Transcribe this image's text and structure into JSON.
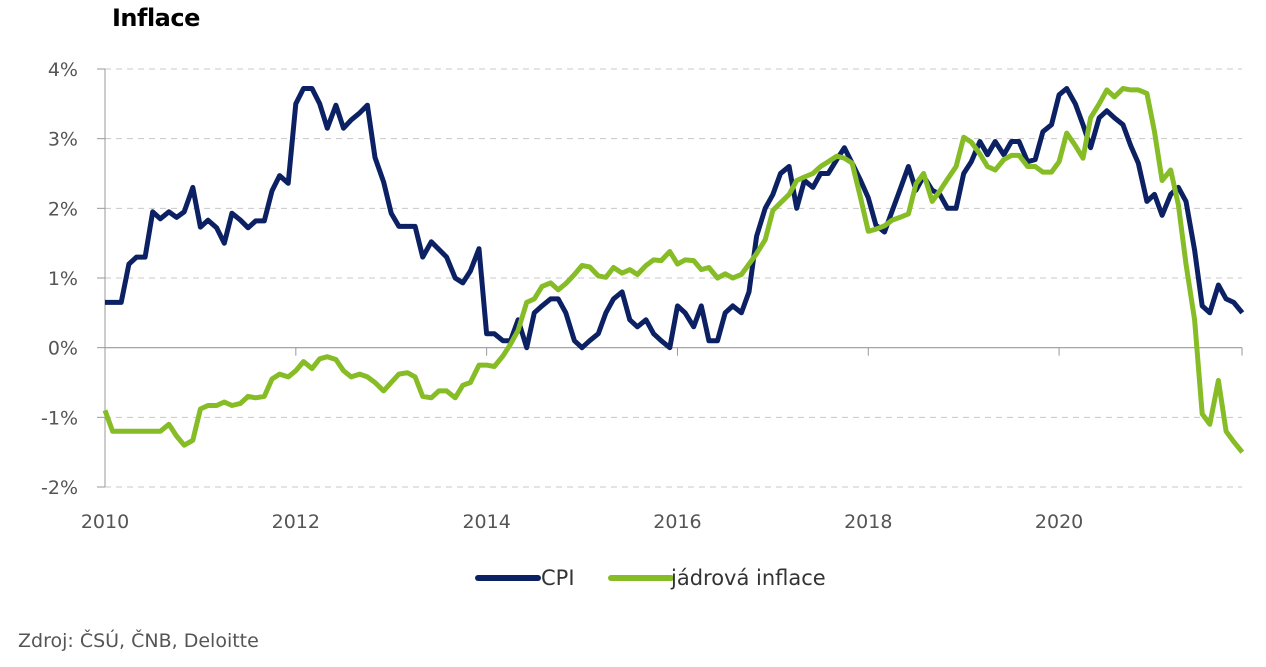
{
  "title": "Inflace",
  "source": "Zdroj: ČSÚ, ČNB, Deloitte",
  "colors": {
    "cpi": "#0c2163",
    "core": "#86bc25",
    "grid": "#c8c8c8",
    "axis": "#999999"
  },
  "chart_data": {
    "type": "line",
    "title": "Inflace",
    "xlabel": "",
    "ylabel": "",
    "xlim": [
      2010,
      2021.917
    ],
    "ylim": [
      -2,
      4
    ],
    "x_ticks": [
      2010,
      2012,
      2014,
      2016,
      2018,
      2020
    ],
    "x_tick_labels": [
      "2010",
      "2012",
      "2014",
      "2016",
      "2018",
      "2020"
    ],
    "y_ticks": [
      -2,
      -1,
      0,
      1,
      2,
      3,
      4
    ],
    "y_tick_labels": [
      "-2%",
      "-1%",
      "0%",
      "1%",
      "2%",
      "3%",
      "4%"
    ],
    "grid": "horizontal dashed",
    "legend": "bottom-center",
    "series": [
      {
        "name": "CPI",
        "color": "#0c2163",
        "points": [
          [
            2010.0,
            0.65
          ],
          [
            2010.17,
            0.65
          ],
          [
            2010.25,
            1.2
          ],
          [
            2010.33,
            1.3
          ],
          [
            2010.42,
            1.3
          ],
          [
            2010.5,
            1.95
          ],
          [
            2010.58,
            1.85
          ],
          [
            2010.67,
            1.95
          ],
          [
            2010.75,
            1.87
          ],
          [
            2010.83,
            1.95
          ],
          [
            2010.92,
            2.3
          ],
          [
            2011.0,
            1.73
          ],
          [
            2011.08,
            1.83
          ],
          [
            2011.17,
            1.72
          ],
          [
            2011.25,
            1.5
          ],
          [
            2011.33,
            1.93
          ],
          [
            2011.42,
            1.83
          ],
          [
            2011.5,
            1.72
          ],
          [
            2011.58,
            1.82
          ],
          [
            2011.67,
            1.82
          ],
          [
            2011.75,
            2.25
          ],
          [
            2011.83,
            2.47
          ],
          [
            2011.92,
            2.36
          ],
          [
            2012.0,
            3.5
          ],
          [
            2012.08,
            3.72
          ],
          [
            2012.17,
            3.72
          ],
          [
            2012.25,
            3.5
          ],
          [
            2012.33,
            3.15
          ],
          [
            2012.42,
            3.48
          ],
          [
            2012.5,
            3.15
          ],
          [
            2012.58,
            3.27
          ],
          [
            2012.67,
            3.37
          ],
          [
            2012.75,
            3.48
          ],
          [
            2012.83,
            2.73
          ],
          [
            2012.92,
            2.38
          ],
          [
            2013.0,
            1.93
          ],
          [
            2013.08,
            1.74
          ],
          [
            2013.17,
            1.74
          ],
          [
            2013.25,
            1.74
          ],
          [
            2013.33,
            1.3
          ],
          [
            2013.42,
            1.52
          ],
          [
            2013.5,
            1.41
          ],
          [
            2013.58,
            1.3
          ],
          [
            2013.67,
            1.0
          ],
          [
            2013.75,
            0.93
          ],
          [
            2013.83,
            1.1
          ],
          [
            2013.92,
            1.42
          ],
          [
            2014.0,
            0.2
          ],
          [
            2014.08,
            0.2
          ],
          [
            2014.17,
            0.1
          ],
          [
            2014.25,
            0.1
          ],
          [
            2014.33,
            0.4
          ],
          [
            2014.42,
            0.0
          ],
          [
            2014.5,
            0.5
          ],
          [
            2014.58,
            0.6
          ],
          [
            2014.67,
            0.7
          ],
          [
            2014.75,
            0.7
          ],
          [
            2014.83,
            0.5
          ],
          [
            2014.92,
            0.1
          ],
          [
            2015.0,
            0.0
          ],
          [
            2015.08,
            0.1
          ],
          [
            2015.17,
            0.2
          ],
          [
            2015.25,
            0.5
          ],
          [
            2015.33,
            0.7
          ],
          [
            2015.42,
            0.8
          ],
          [
            2015.5,
            0.4
          ],
          [
            2015.58,
            0.3
          ],
          [
            2015.67,
            0.4
          ],
          [
            2015.75,
            0.2
          ],
          [
            2015.83,
            0.1
          ],
          [
            2015.92,
            0.0
          ],
          [
            2016.0,
            0.6
          ],
          [
            2016.08,
            0.5
          ],
          [
            2016.17,
            0.3
          ],
          [
            2016.25,
            0.6
          ],
          [
            2016.33,
            0.1
          ],
          [
            2016.42,
            0.1
          ],
          [
            2016.5,
            0.5
          ],
          [
            2016.58,
            0.6
          ],
          [
            2016.67,
            0.5
          ],
          [
            2016.75,
            0.8
          ],
          [
            2016.83,
            1.6
          ],
          [
            2016.92,
            2.0
          ],
          [
            2017.0,
            2.2
          ],
          [
            2017.08,
            2.5
          ],
          [
            2017.17,
            2.6
          ],
          [
            2017.25,
            2.0
          ],
          [
            2017.33,
            2.4
          ],
          [
            2017.42,
            2.3
          ],
          [
            2017.5,
            2.5
          ],
          [
            2017.58,
            2.5
          ],
          [
            2017.67,
            2.7
          ],
          [
            2017.75,
            2.87
          ],
          [
            2017.83,
            2.65
          ],
          [
            2017.92,
            2.4
          ],
          [
            2018.0,
            2.15
          ],
          [
            2018.08,
            1.76
          ],
          [
            2018.17,
            1.66
          ],
          [
            2018.25,
            1.96
          ],
          [
            2018.33,
            2.26
          ],
          [
            2018.42,
            2.6
          ],
          [
            2018.5,
            2.26
          ],
          [
            2018.58,
            2.46
          ],
          [
            2018.67,
            2.26
          ],
          [
            2018.75,
            2.2
          ],
          [
            2018.83,
            2.0
          ],
          [
            2018.92,
            2.0
          ],
          [
            2019.0,
            2.5
          ],
          [
            2019.08,
            2.67
          ],
          [
            2019.17,
            2.96
          ],
          [
            2019.25,
            2.77
          ],
          [
            2019.33,
            2.96
          ],
          [
            2019.42,
            2.77
          ],
          [
            2019.5,
            2.96
          ],
          [
            2019.58,
            2.96
          ],
          [
            2019.67,
            2.67
          ],
          [
            2019.75,
            2.7
          ],
          [
            2019.83,
            3.1
          ],
          [
            2019.92,
            3.2
          ],
          [
            2020.0,
            3.63
          ],
          [
            2020.08,
            3.72
          ],
          [
            2020.17,
            3.5
          ],
          [
            2020.25,
            3.2
          ],
          [
            2020.33,
            2.87
          ],
          [
            2020.42,
            3.3
          ],
          [
            2020.5,
            3.4
          ],
          [
            2020.58,
            3.3
          ],
          [
            2020.67,
            3.2
          ],
          [
            2020.75,
            2.9
          ],
          [
            2020.83,
            2.65
          ],
          [
            2020.92,
            2.1
          ],
          [
            2021.0,
            2.2
          ],
          [
            2021.08,
            1.9
          ],
          [
            2021.17,
            2.2
          ],
          [
            2021.25,
            2.3
          ],
          [
            2021.33,
            2.1
          ],
          [
            2021.42,
            1.4
          ],
          [
            2021.5,
            0.6
          ],
          [
            2021.58,
            0.5
          ],
          [
            2021.67,
            0.9
          ],
          [
            2021.75,
            0.7
          ],
          [
            2021.83,
            0.65
          ],
          [
            2021.92,
            0.5
          ]
        ]
      },
      {
        "name": "jádrová inflace",
        "color": "#86bc25",
        "points": [
          [
            2010.0,
            -0.9
          ],
          [
            2010.08,
            -1.2
          ],
          [
            2010.17,
            -1.2
          ],
          [
            2010.25,
            -1.2
          ],
          [
            2010.33,
            -1.2
          ],
          [
            2010.42,
            -1.2
          ],
          [
            2010.5,
            -1.2
          ],
          [
            2010.58,
            -1.2
          ],
          [
            2010.67,
            -1.1
          ],
          [
            2010.75,
            -1.27
          ],
          [
            2010.83,
            -1.4
          ],
          [
            2010.92,
            -1.33
          ],
          [
            2011.0,
            -0.88
          ],
          [
            2011.08,
            -0.83
          ],
          [
            2011.17,
            -0.83
          ],
          [
            2011.25,
            -0.78
          ],
          [
            2011.33,
            -0.83
          ],
          [
            2011.42,
            -0.8
          ],
          [
            2011.5,
            -0.7
          ],
          [
            2011.58,
            -0.72
          ],
          [
            2011.67,
            -0.7
          ],
          [
            2011.75,
            -0.45
          ],
          [
            2011.83,
            -0.38
          ],
          [
            2011.92,
            -0.42
          ],
          [
            2012.0,
            -0.33
          ],
          [
            2012.08,
            -0.2
          ],
          [
            2012.17,
            -0.3
          ],
          [
            2012.25,
            -0.16
          ],
          [
            2012.33,
            -0.13
          ],
          [
            2012.42,
            -0.17
          ],
          [
            2012.5,
            -0.33
          ],
          [
            2012.58,
            -0.42
          ],
          [
            2012.67,
            -0.38
          ],
          [
            2012.75,
            -0.42
          ],
          [
            2012.83,
            -0.5
          ],
          [
            2012.92,
            -0.62
          ],
          [
            2013.0,
            -0.5
          ],
          [
            2013.08,
            -0.38
          ],
          [
            2013.17,
            -0.36
          ],
          [
            2013.25,
            -0.42
          ],
          [
            2013.33,
            -0.7
          ],
          [
            2013.42,
            -0.72
          ],
          [
            2013.5,
            -0.62
          ],
          [
            2013.58,
            -0.62
          ],
          [
            2013.67,
            -0.72
          ],
          [
            2013.75,
            -0.54
          ],
          [
            2013.83,
            -0.5
          ],
          [
            2013.92,
            -0.25
          ],
          [
            2014.0,
            -0.25
          ],
          [
            2014.08,
            -0.27
          ],
          [
            2014.17,
            -0.12
          ],
          [
            2014.25,
            0.05
          ],
          [
            2014.33,
            0.25
          ],
          [
            2014.42,
            0.65
          ],
          [
            2014.5,
            0.7
          ],
          [
            2014.58,
            0.88
          ],
          [
            2014.67,
            0.93
          ],
          [
            2014.75,
            0.83
          ],
          [
            2014.83,
            0.92
          ],
          [
            2014.92,
            1.05
          ],
          [
            2015.0,
            1.18
          ],
          [
            2015.08,
            1.16
          ],
          [
            2015.17,
            1.03
          ],
          [
            2015.25,
            1.01
          ],
          [
            2015.33,
            1.15
          ],
          [
            2015.42,
            1.07
          ],
          [
            2015.5,
            1.12
          ],
          [
            2015.58,
            1.05
          ],
          [
            2015.67,
            1.18
          ],
          [
            2015.75,
            1.26
          ],
          [
            2015.83,
            1.25
          ],
          [
            2015.92,
            1.38
          ],
          [
            2016.0,
            1.2
          ],
          [
            2016.08,
            1.26
          ],
          [
            2016.17,
            1.25
          ],
          [
            2016.25,
            1.12
          ],
          [
            2016.33,
            1.15
          ],
          [
            2016.42,
            1.0
          ],
          [
            2016.5,
            1.06
          ],
          [
            2016.58,
            1.0
          ],
          [
            2016.67,
            1.05
          ],
          [
            2016.75,
            1.2
          ],
          [
            2016.83,
            1.35
          ],
          [
            2016.92,
            1.55
          ],
          [
            2017.0,
            1.97
          ],
          [
            2017.08,
            2.08
          ],
          [
            2017.17,
            2.2
          ],
          [
            2017.25,
            2.4
          ],
          [
            2017.33,
            2.45
          ],
          [
            2017.42,
            2.5
          ],
          [
            2017.5,
            2.6
          ],
          [
            2017.58,
            2.67
          ],
          [
            2017.67,
            2.75
          ],
          [
            2017.75,
            2.72
          ],
          [
            2017.83,
            2.65
          ],
          [
            2017.92,
            2.15
          ],
          [
            2018.0,
            1.67
          ],
          [
            2018.08,
            1.7
          ],
          [
            2018.17,
            1.75
          ],
          [
            2018.25,
            1.83
          ],
          [
            2018.33,
            1.87
          ],
          [
            2018.42,
            1.92
          ],
          [
            2018.5,
            2.35
          ],
          [
            2018.58,
            2.5
          ],
          [
            2018.67,
            2.1
          ],
          [
            2018.75,
            2.25
          ],
          [
            2018.83,
            2.42
          ],
          [
            2018.92,
            2.6
          ],
          [
            2019.0,
            3.02
          ],
          [
            2019.08,
            2.95
          ],
          [
            2019.17,
            2.78
          ],
          [
            2019.25,
            2.6
          ],
          [
            2019.33,
            2.55
          ],
          [
            2019.42,
            2.7
          ],
          [
            2019.5,
            2.76
          ],
          [
            2019.58,
            2.76
          ],
          [
            2019.67,
            2.6
          ],
          [
            2019.75,
            2.6
          ],
          [
            2019.83,
            2.52
          ],
          [
            2019.92,
            2.52
          ],
          [
            2020.0,
            2.67
          ],
          [
            2020.08,
            3.08
          ],
          [
            2020.17,
            2.9
          ],
          [
            2020.25,
            2.72
          ],
          [
            2020.33,
            3.3
          ],
          [
            2020.42,
            3.5
          ],
          [
            2020.5,
            3.7
          ],
          [
            2020.58,
            3.6
          ],
          [
            2020.67,
            3.72
          ],
          [
            2020.75,
            3.7
          ],
          [
            2020.83,
            3.7
          ],
          [
            2020.92,
            3.65
          ],
          [
            2021.0,
            3.1
          ],
          [
            2021.08,
            2.4
          ],
          [
            2021.17,
            2.55
          ],
          [
            2021.25,
            2.05
          ],
          [
            2021.33,
            1.2
          ],
          [
            2021.42,
            0.4
          ],
          [
            2021.5,
            -0.95
          ],
          [
            2021.58,
            -1.1
          ],
          [
            2021.67,
            -0.47
          ],
          [
            2021.75,
            -1.2
          ],
          [
            2021.83,
            -1.35
          ],
          [
            2021.92,
            -1.5
          ]
        ]
      }
    ]
  }
}
